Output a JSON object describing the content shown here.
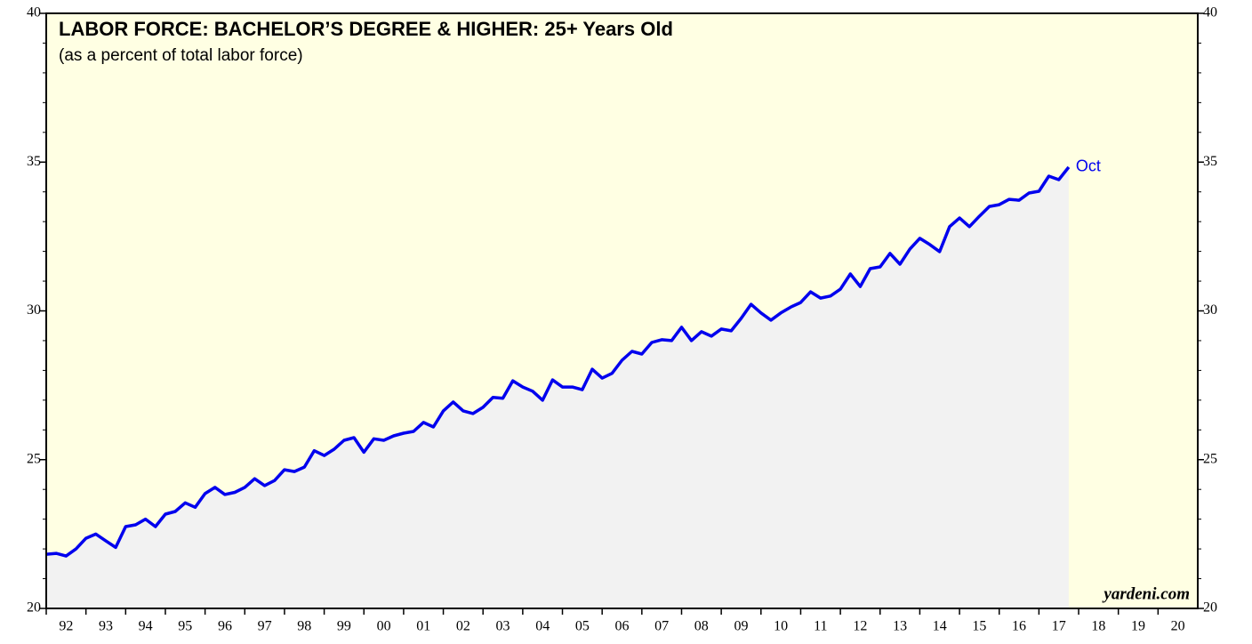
{
  "chart_data": {
    "type": "line",
    "title": "LABOR FORCE: BACHELOR’S DEGREE & HIGHER: 25+ Years Old",
    "subtitle": "(as a percent of total labor force)",
    "annotation": "Oct",
    "source": "yardeni.com",
    "color": "#0000ee",
    "x": [
      1992.0,
      1992.25,
      1992.5,
      1992.75,
      1993.0,
      1993.25,
      1993.5,
      1993.75,
      1994.0,
      1994.25,
      1994.5,
      1994.75,
      1995.0,
      1995.25,
      1995.5,
      1995.75,
      1996.0,
      1996.25,
      1996.5,
      1996.75,
      1997.0,
      1997.25,
      1997.5,
      1997.75,
      1998.0,
      1998.25,
      1998.5,
      1998.75,
      1999.0,
      1999.25,
      1999.5,
      1999.75,
      2000.0,
      2000.25,
      2000.5,
      2000.75,
      2001.0,
      2001.25,
      2001.5,
      2001.75,
      2002.0,
      2002.25,
      2002.5,
      2002.75,
      2003.0,
      2003.25,
      2003.5,
      2003.75,
      2004.0,
      2004.25,
      2004.5,
      2004.75,
      2005.0,
      2005.25,
      2005.5,
      2005.75,
      2006.0,
      2006.25,
      2006.5,
      2006.75,
      2007.0,
      2007.25,
      2007.5,
      2007.75,
      2008.0,
      2008.25,
      2008.5,
      2008.75,
      2009.0,
      2009.25,
      2009.5,
      2009.75,
      2010.0,
      2010.25,
      2010.5,
      2010.75,
      2011.0,
      2011.25,
      2011.5,
      2011.75,
      2012.0,
      2012.25,
      2012.5,
      2012.75,
      2013.0,
      2013.25,
      2013.5,
      2013.75,
      2014.0,
      2014.25,
      2014.5,
      2014.75,
      2015.0,
      2015.25,
      2015.5,
      2015.75,
      2016.0,
      2016.25,
      2016.5,
      2016.75,
      2017.0,
      2017.25,
      2017.5,
      2017.75
    ],
    "values": [
      21.82,
      21.85,
      21.76,
      22.0,
      22.36,
      22.5,
      22.27,
      22.05,
      22.75,
      22.81,
      23.0,
      22.75,
      23.17,
      23.26,
      23.55,
      23.4,
      23.86,
      24.07,
      23.83,
      23.9,
      24.07,
      24.36,
      24.13,
      24.3,
      24.66,
      24.6,
      24.75,
      25.3,
      25.14,
      25.35,
      25.65,
      25.74,
      25.25,
      25.7,
      25.65,
      25.8,
      25.89,
      25.95,
      26.25,
      26.1,
      26.64,
      26.94,
      26.64,
      26.55,
      26.76,
      27.09,
      27.06,
      27.65,
      27.44,
      27.3,
      27.0,
      27.68,
      27.44,
      27.44,
      27.35,
      28.04,
      27.74,
      27.9,
      28.34,
      28.64,
      28.55,
      28.94,
      29.03,
      29.0,
      29.45,
      29.0,
      29.3,
      29.15,
      29.39,
      29.33,
      29.75,
      30.22,
      29.93,
      29.69,
      29.93,
      30.13,
      30.28,
      30.64,
      30.43,
      30.5,
      30.73,
      31.24,
      30.82,
      31.42,
      31.48,
      31.93,
      31.57,
      32.08,
      32.44,
      32.23,
      31.99,
      32.83,
      33.12,
      32.83,
      33.18,
      33.51,
      33.57,
      33.75,
      33.72,
      33.96,
      34.02,
      34.53,
      34.41,
      34.83
    ],
    "xlim": [
      1992,
      2021
    ],
    "xticks": [
      {
        "value": 1992,
        "label": "92"
      },
      {
        "value": 1993,
        "label": "93"
      },
      {
        "value": 1994,
        "label": "94"
      },
      {
        "value": 1995,
        "label": "95"
      },
      {
        "value": 1996,
        "label": "96"
      },
      {
        "value": 1997,
        "label": "97"
      },
      {
        "value": 1998,
        "label": "98"
      },
      {
        "value": 1999,
        "label": "99"
      },
      {
        "value": 2000,
        "label": "00"
      },
      {
        "value": 2001,
        "label": "01"
      },
      {
        "value": 2002,
        "label": "02"
      },
      {
        "value": 2003,
        "label": "03"
      },
      {
        "value": 2004,
        "label": "04"
      },
      {
        "value": 2005,
        "label": "05"
      },
      {
        "value": 2006,
        "label": "06"
      },
      {
        "value": 2007,
        "label": "07"
      },
      {
        "value": 2008,
        "label": "08"
      },
      {
        "value": 2009,
        "label": "09"
      },
      {
        "value": 2010,
        "label": "10"
      },
      {
        "value": 2011,
        "label": "11"
      },
      {
        "value": 2012,
        "label": "12"
      },
      {
        "value": 2013,
        "label": "13"
      },
      {
        "value": 2014,
        "label": "14"
      },
      {
        "value": 2015,
        "label": "15"
      },
      {
        "value": 2016,
        "label": "16"
      },
      {
        "value": 2017,
        "label": "17"
      },
      {
        "value": 2018,
        "label": "18"
      },
      {
        "value": 2019,
        "label": "19"
      },
      {
        "value": 2020,
        "label": "20"
      }
    ],
    "ylim": [
      20,
      40
    ],
    "yticks": [
      20,
      25,
      30,
      35,
      40
    ],
    "grid": false
  }
}
